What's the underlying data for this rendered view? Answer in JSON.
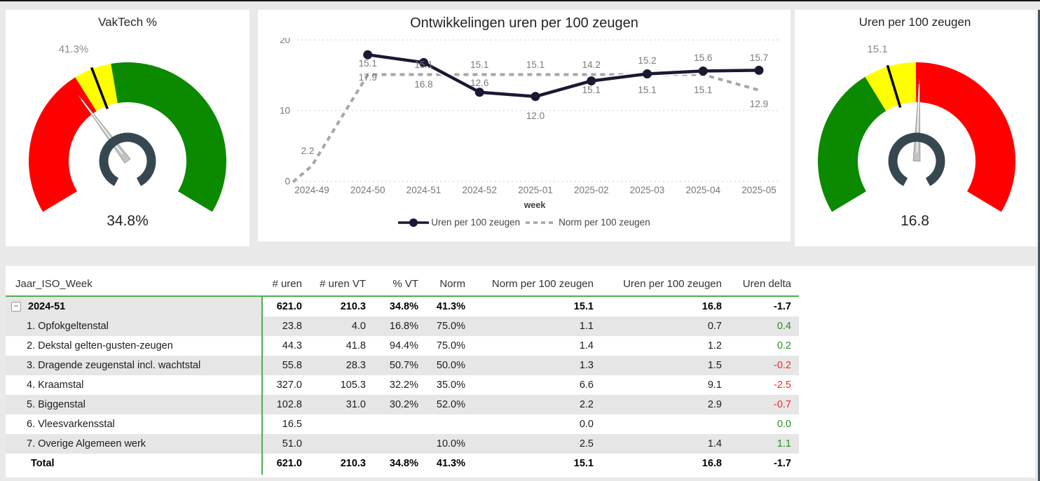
{
  "chart_data": [
    {
      "type": "line",
      "title": "Ontwikkelingen uren per 100 zeugen",
      "xlabel": "week",
      "x": [
        "2024-49",
        "2024-50",
        "2024-51",
        "2024-52",
        "2025-01",
        "2025-02",
        "2025-03",
        "2025-04",
        "2025-05"
      ],
      "ylim": [
        0,
        20
      ],
      "yticks": [
        0,
        10,
        20
      ],
      "grid": "dotted",
      "legend_position": "bottom",
      "series": [
        {
          "name": "Uren per 100 zeugen",
          "style": "solid",
          "color": "#191934",
          "values": [
            null,
            17.9,
            16.8,
            12.6,
            12.0,
            14.2,
            15.2,
            15.6,
            15.7
          ]
        },
        {
          "name": "Norm per 100 zeugen",
          "style": "dashed",
          "color": "#a6a6a6",
          "values": [
            2.2,
            15.1,
            15.1,
            15.1,
            15.1,
            15.1,
            15.1,
            15.1,
            12.9
          ]
        }
      ]
    },
    {
      "type": "gauge",
      "title": "VakTech %",
      "value": 34.8,
      "target": 41.3,
      "min": 0,
      "max": 100,
      "value_label": "34.8%",
      "target_label": "41.3%",
      "needle_fraction": 0.348,
      "target_fraction": 0.413,
      "bands": [
        {
          "from": 0,
          "to": 0.368,
          "color": "#fe0000"
        },
        {
          "from": 0.368,
          "to": 0.46,
          "color": "#ffff00"
        },
        {
          "from": 0.46,
          "to": 1,
          "color": "#0b8a00"
        }
      ]
    },
    {
      "type": "gauge",
      "title": "Uren per 100 zeugen",
      "value": 16.8,
      "target": 15.1,
      "min": 0,
      "max": 33.6,
      "value_label": "16.8",
      "target_label": "15.1",
      "needle_fraction": 0.508,
      "target_fraction": 0.43,
      "bands": [
        {
          "from": 0,
          "to": 0.37,
          "color": "#0b8a00"
        },
        {
          "from": 0.37,
          "to": 0.498,
          "color": "#ffff00"
        },
        {
          "from": 0.498,
          "to": 1,
          "color": "#fe0000"
        }
      ]
    }
  ],
  "table": {
    "collapse_icon_glyph": "−",
    "columns": [
      "Jaar_ISO_Week",
      "# uren",
      "# uren VT",
      "% VT",
      "Norm",
      "Norm per 100 zeugen",
      "Uren per 100 zeugen",
      "Uren delta"
    ],
    "rows": [
      {
        "label": "2024-51",
        "type": "group",
        "bold": true,
        "delta": "dark",
        "cells": [
          "621.0",
          "210.3",
          "34.8%",
          "41.3%",
          "15.1",
          "16.8",
          "-1.7"
        ]
      },
      {
        "label": "1. Opfokgeltenstal",
        "shade": true,
        "delta": "pos",
        "cells": [
          "23.8",
          "4.0",
          "16.8%",
          "75.0%",
          "1.1",
          "0.7",
          "0.4"
        ]
      },
      {
        "label": "2. Dekstal gelten-gusten-zeugen",
        "delta": "pos",
        "cells": [
          "44.3",
          "41.8",
          "94.4%",
          "75.0%",
          "1.4",
          "1.2",
          "0.2"
        ]
      },
      {
        "label": "3. Dragende zeugenstal incl. wachtstal",
        "shade": true,
        "delta": "neg",
        "cells": [
          "55.8",
          "28.3",
          "50.7%",
          "50.0%",
          "1.3",
          "1.5",
          "-0.2"
        ]
      },
      {
        "label": "4. Kraamstal",
        "delta": "neg",
        "cells": [
          "327.0",
          "105.3",
          "32.2%",
          "35.0%",
          "6.6",
          "9.1",
          "-2.5"
        ]
      },
      {
        "label": "5. Biggenstal",
        "shade": true,
        "delta": "neg",
        "cells": [
          "102.8",
          "31.0",
          "30.2%",
          "52.0%",
          "2.2",
          "2.9",
          "-0.7"
        ]
      },
      {
        "label": "6. Vleesvarkensstal",
        "delta": "pos",
        "cells": [
          "16.5",
          "",
          "",
          "",
          "0.0",
          "",
          "0.0"
        ]
      },
      {
        "label": "7. Overige Algemeen werk",
        "shade": true,
        "delta": "pos",
        "cells": [
          "51.0",
          "",
          "",
          "10.0%",
          "2.5",
          "1.4",
          "1.1"
        ]
      },
      {
        "label": "Total",
        "type": "total",
        "bold": true,
        "delta": "dark",
        "cells": [
          "621.0",
          "210.3",
          "34.8%",
          "41.3%",
          "15.1",
          "16.8",
          "-1.7"
        ]
      }
    ],
    "colors": {
      "accent_green": "#4caf50",
      "delta_pos": "#239023",
      "delta_neg": "#f12b2b",
      "row_band": "#e6e6e6"
    }
  }
}
